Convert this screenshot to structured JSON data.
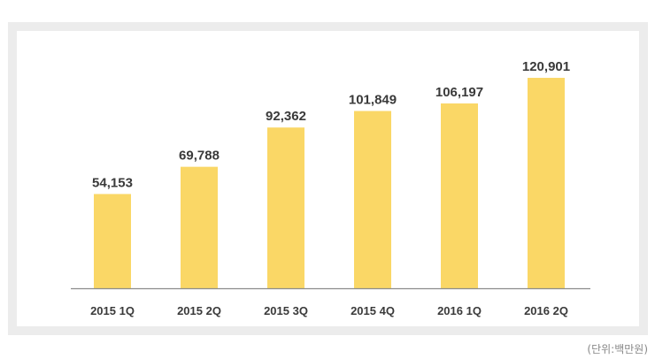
{
  "unit_note": "(단위:백만원)",
  "colors": {
    "bar": "#fad766",
    "axis": "#8c8c8c",
    "label": "#3a3a3a",
    "frame": "#ececec"
  },
  "chart_data": {
    "type": "bar",
    "categories": [
      "2015 1Q",
      "2015 2Q",
      "2015 3Q",
      "2015 4Q",
      "2016 1Q",
      "2016 2Q"
    ],
    "values": [
      54153,
      69788,
      92362,
      101849,
      106197,
      120901
    ],
    "value_labels": [
      "54,153",
      "69,788",
      "92,362",
      "101,849",
      "106,197",
      "120,901"
    ],
    "title": "",
    "xlabel": "",
    "ylabel": "",
    "ylim": [
      0,
      126000
    ],
    "grid": false,
    "legend": "none"
  }
}
